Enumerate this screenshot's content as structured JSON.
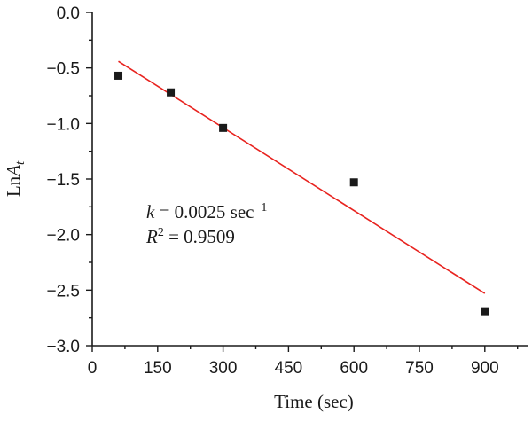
{
  "chart_data": {
    "type": "scatter",
    "xlabel": "Time (sec)",
    "ylabel": {
      "prefix": "Ln",
      "main": "A",
      "sub": "t"
    },
    "xlim": [
      0,
      1000
    ],
    "ylim": [
      -3.0,
      0.0
    ],
    "xticks": [
      0,
      150,
      300,
      450,
      600,
      750,
      900
    ],
    "yticks": [
      0.0,
      -0.5,
      -1.0,
      -1.5,
      -2.0,
      -2.5,
      -3.0
    ],
    "xtick_labels": [
      "0",
      "150",
      "300",
      "450",
      "600",
      "750",
      "900"
    ],
    "ytick_labels": [
      "0.0",
      "−0.5",
      "−1.0",
      "−1.5",
      "−2.0",
      "−2.5",
      "−3.0"
    ],
    "series": [
      {
        "kind": "points",
        "marker": "square",
        "color": "#1a1a1a",
        "x": [
          60,
          180,
          300,
          600,
          900
        ],
        "y": [
          -0.57,
          -0.72,
          -1.04,
          -1.53,
          -2.69
        ]
      },
      {
        "kind": "fit-line",
        "color": "#e8231f",
        "x": [
          60,
          900
        ],
        "y": [
          -0.44,
          -2.53
        ]
      }
    ],
    "annotations": {
      "k_symbol": "k",
      "k_rest": " = 0.0025 sec",
      "k_sup": "−1",
      "r_symbol": "R",
      "r_sup": "2",
      "r_rest": " = 0.9509"
    }
  }
}
